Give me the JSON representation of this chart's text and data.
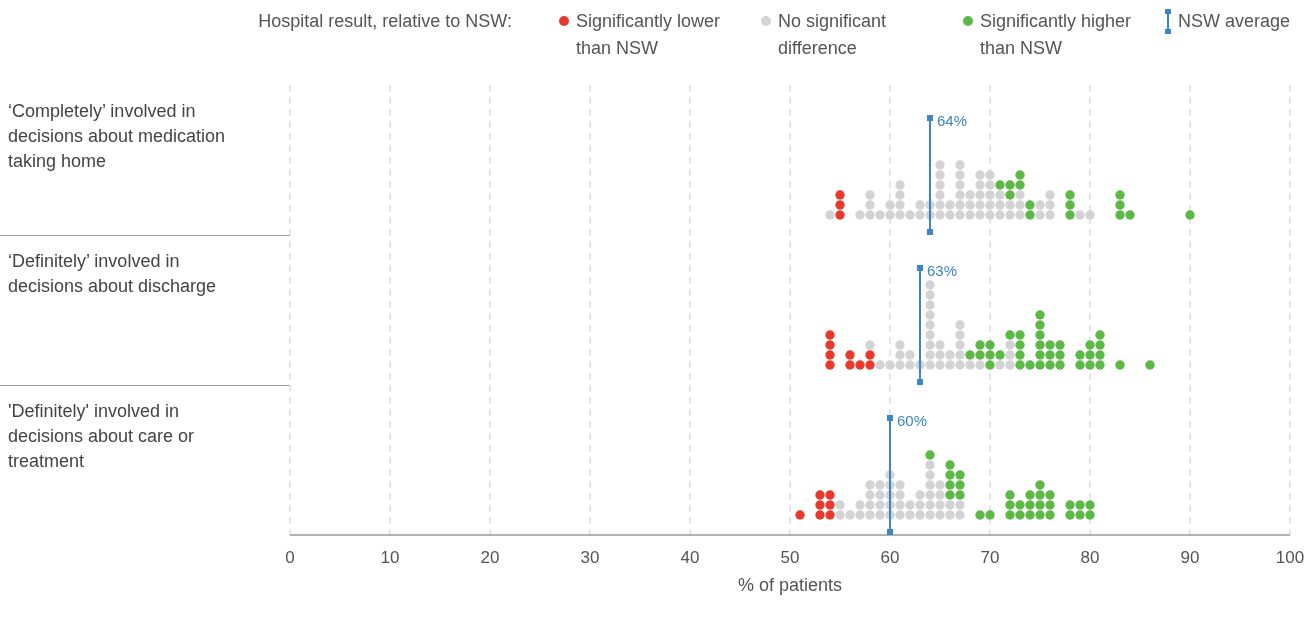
{
  "chart_data": {
    "type": "scatter",
    "orientation": "horizontal",
    "legend_title": "Hospital result, relative to NSW:",
    "legend": "top right",
    "marker": "circle",
    "grid": "x",
    "xlabel": "% of patients",
    "xlim": [
      0,
      100
    ],
    "xticks": [
      0,
      10,
      20,
      30,
      40,
      50,
      60,
      70,
      80,
      90,
      100
    ],
    "categories": [
      "‘Completely’ involved in decisions about medication taking home",
      "‘Definitely’ involved in decisions about discharge",
      "'Definitely' involved in decisions about care or treatment"
    ],
    "series": [
      {
        "name": "Significantly lower than NSW",
        "color": "#e8392c",
        "x": [
          "‘Completely’ involved in decisions about medication taking home",
          "‘Completely’ involved in decisions about medication taking home",
          "‘Completely’ involved in decisions about medication taking home",
          "‘Definitely’ involved in decisions about discharge",
          "‘Definitely’ involved in decisions about discharge",
          "‘Definitely’ involved in decisions about discharge",
          "‘Definitely’ involved in decisions about discharge",
          "‘Definitely’ involved in decisions about discharge",
          "‘Definitely’ involved in decisions about discharge",
          "‘Definitely’ involved in decisions about discharge",
          "‘Definitely’ involved in decisions about discharge",
          "‘Definitely’ involved in decisions about discharge",
          "'Definitely' involved in decisions about care or treatment",
          "'Definitely' involved in decisions about care or treatment",
          "'Definitely' involved in decisions about care or treatment",
          "'Definitely' involved in decisions about care or treatment",
          "'Definitely' involved in decisions about care or treatment",
          "'Definitely' involved in decisions about care or treatment",
          "'Definitely' involved in decisions about care or treatment"
        ],
        "values": [
          55,
          55,
          55,
          54,
          54,
          54,
          54,
          56,
          56,
          57,
          58,
          58,
          51,
          53,
          53,
          53,
          54,
          54,
          54
        ]
      },
      {
        "name": "No significant difference",
        "color": "#d3d3d5",
        "x": [
          "‘Completely’ involved in decisions about medication taking home",
          "‘Completely’ involved in decisions about medication taking home",
          "‘Completely’ involved in decisions about medication taking home",
          "‘Completely’ involved in decisions about medication taking home",
          "‘Completely’ involved in decisions about medication taking home",
          "‘Completely’ involved in decisions about medication taking home",
          "‘Completely’ involved in decisions about medication taking home",
          "‘Completely’ involved in decisions about medication taking home",
          "‘Completely’ involved in decisions about medication taking home",
          "‘Completely’ involved in decisions about medication taking home",
          "‘Completely’ involved in decisions about medication taking home",
          "‘Completely’ involved in decisions about medication taking home",
          "‘Completely’ involved in decisions about medication taking home",
          "‘Completely’ involved in decisions about medication taking home",
          "‘Completely’ involved in decisions about medication taking home",
          "‘Completely’ involved in decisions about medication taking home",
          "‘Completely’ involved in decisions about medication taking home",
          "‘Completely’ involved in decisions about medication taking home",
          "‘Completely’ involved in decisions about medication taking home",
          "‘Completely’ involved in decisions about medication taking home",
          "‘Completely’ involved in decisions about medication taking home",
          "‘Completely’ involved in decisions about medication taking home",
          "‘Completely’ involved in decisions about medication taking home",
          "‘Completely’ involved in decisions about medication taking home",
          "‘Completely’ involved in decisions about medication taking home",
          "‘Completely’ involved in decisions about medication taking home",
          "‘Completely’ involved in decisions about medication taking home",
          "‘Completely’ involved in decisions about medication taking home",
          "‘Completely’ involved in decisions about medication taking home",
          "‘Completely’ involved in decisions about medication taking home",
          "‘Completely’ involved in decisions about medication taking home",
          "‘Completely’ involved in decisions about medication taking home",
          "‘Completely’ involved in decisions about medication taking home",
          "‘Completely’ involved in decisions about medication taking home",
          "‘Completely’ involved in decisions about medication taking home",
          "‘Completely’ involved in decisions about medication taking home",
          "‘Completely’ involved in decisions about medication taking home",
          "‘Completely’ involved in decisions about medication taking home",
          "‘Completely’ involved in decisions about medication taking home",
          "‘Completely’ involved in decisions about medication taking home",
          "‘Completely’ involved in decisions about medication taking home",
          "‘Completely’ involved in decisions about medication taking home",
          "‘Completely’ involved in decisions about medication taking home",
          "‘Completely’ involved in decisions about medication taking home",
          "‘Completely’ involved in decisions about medication taking home",
          "‘Completely’ involved in decisions about medication taking home",
          "‘Completely’ involved in decisions about medication taking home",
          "‘Completely’ involved in decisions about medication taking home",
          "‘Completely’ involved in decisions about medication taking home",
          "‘Completely’ involved in decisions about medication taking home",
          "‘Completely’ involved in decisions about medication taking home",
          "‘Completely’ involved in decisions about medication taking home",
          "‘Completely’ involved in decisions about medication taking home",
          "‘Completely’ involved in decisions about medication taking home",
          "‘Completely’ involved in decisions about medication taking home",
          "‘Completely’ involved in decisions about medication taking home",
          "‘Completely’ involved in decisions about medication taking home",
          "‘Completely’ involved in decisions about medication taking home",
          "‘Completely’ involved in decisions about medication taking home",
          "‘Definitely’ involved in decisions about discharge",
          "‘Definitely’ involved in decisions about discharge",
          "‘Definitely’ involved in decisions about discharge",
          "‘Definitely’ involved in decisions about discharge",
          "‘Definitely’ involved in decisions about discharge",
          "‘Definitely’ involved in decisions about discharge",
          "‘Definitely’ involved in decisions about discharge",
          "‘Definitely’ involved in decisions about discharge",
          "‘Definitely’ involved in decisions about discharge",
          "‘Definitely’ involved in decisions about discharge",
          "‘Definitely’ involved in decisions about discharge",
          "‘Definitely’ involved in decisions about discharge",
          "‘Definitely’ involved in decisions about discharge",
          "‘Definitely’ involved in decisions about discharge",
          "‘Definitely’ involved in decisions about discharge",
          "‘Definitely’ involved in decisions about discharge",
          "‘Definitely’ involved in decisions about discharge",
          "‘Definitely’ involved in decisions about discharge",
          "‘Definitely’ involved in decisions about discharge",
          "‘Definitely’ involved in decisions about discharge",
          "‘Definitely’ involved in decisions about discharge",
          "‘Definitely’ involved in decisions about discharge",
          "‘Definitely’ involved in decisions about discharge",
          "‘Definitely’ involved in decisions about discharge",
          "‘Definitely’ involved in decisions about discharge",
          "‘Definitely’ involved in decisions about discharge",
          "‘Definitely’ involved in decisions about discharge",
          "‘Definitely’ involved in decisions about discharge",
          "‘Definitely’ involved in decisions about discharge",
          "‘Definitely’ involved in decisions about discharge",
          "‘Definitely’ involved in decisions about discharge",
          "‘Definitely’ involved in decisions about discharge",
          "‘Definitely’ involved in decisions about discharge",
          "‘Definitely’ involved in decisions about discharge",
          "'Definitely' involved in decisions about care or treatment",
          "'Definitely' involved in decisions about care or treatment",
          "'Definitely' involved in decisions about care or treatment",
          "'Definitely' involved in decisions about care or treatment",
          "'Definitely' involved in decisions about care or treatment",
          "'Definitely' involved in decisions about care or treatment",
          "'Definitely' involved in decisions about care or treatment",
          "'Definitely' involved in decisions about care or treatment",
          "'Definitely' involved in decisions about care or treatment",
          "'Definitely' involved in decisions about care or treatment",
          "'Definitely' involved in decisions about care or treatment",
          "'Definitely' involved in decisions about care or treatment",
          "'Definitely' involved in decisions about care or treatment",
          "'Definitely' involved in decisions about care or treatment",
          "'Definitely' involved in decisions about care or treatment",
          "'Definitely' involved in decisions about care or treatment",
          "'Definitely' involved in decisions about care or treatment",
          "'Definitely' involved in decisions about care or treatment",
          "'Definitely' involved in decisions about care or treatment",
          "'Definitely' involved in decisions about care or treatment",
          "'Definitely' involved in decisions about care or treatment",
          "'Definitely' involved in decisions about care or treatment",
          "'Definitely' involved in decisions about care or treatment",
          "'Definitely' involved in decisions about care or treatment",
          "'Definitely' involved in decisions about care or treatment",
          "'Definitely' involved in decisions about care or treatment",
          "'Definitely' involved in decisions about care or treatment",
          "'Definitely' involved in decisions about care or treatment",
          "'Definitely' involved in decisions about care or treatment",
          "'Definitely' involved in decisions about care or treatment",
          "'Definitely' involved in decisions about care or treatment",
          "'Definitely' involved in decisions about care or treatment",
          "'Definitely' involved in decisions about care or treatment",
          "'Definitely' involved in decisions about care or treatment",
          "'Definitely' involved in decisions about care or treatment",
          "'Definitely' involved in decisions about care or treatment",
          "'Definitely' involved in decisions about care or treatment",
          "'Definitely' involved in decisions about care or treatment",
          "'Definitely' involved in decisions about care or treatment",
          "'Definitely' involved in decisions about care or treatment",
          "'Definitely' involved in decisions about care or treatment"
        ],
        "values": [
          54,
          57,
          58,
          58,
          58,
          59,
          60,
          60,
          61,
          61,
          61,
          61,
          62,
          63,
          63,
          64,
          64,
          65,
          65,
          65,
          65,
          65,
          65,
          66,
          66,
          67,
          67,
          67,
          67,
          67,
          67,
          68,
          68,
          68,
          69,
          69,
          69,
          69,
          69,
          70,
          70,
          70,
          70,
          70,
          71,
          71,
          71,
          72,
          72,
          73,
          73,
          73,
          75,
          75,
          76,
          76,
          76,
          79,
          80,
          58,
          59,
          60,
          61,
          61,
          61,
          62,
          62,
          63,
          64,
          64,
          64,
          64,
          64,
          64,
          64,
          64,
          64,
          65,
          65,
          65,
          66,
          66,
          67,
          67,
          67,
          67,
          67,
          68,
          69,
          71,
          72,
          72,
          72,
          55,
          55,
          56,
          57,
          57,
          58,
          58,
          58,
          58,
          59,
          59,
          59,
          59,
          60,
          60,
          60,
          60,
          60,
          61,
          61,
          61,
          61,
          62,
          62,
          63,
          63,
          63,
          64,
          64,
          64,
          64,
          64,
          64,
          65,
          65,
          65,
          65,
          66,
          66,
          67,
          67
        ]
      },
      {
        "name": "Significantly higher than NSW",
        "color": "#5cb946",
        "x": [
          "‘Completely’ involved in decisions about medication taking home",
          "‘Completely’ involved in decisions about medication taking home",
          "‘Completely’ involved in decisions about medication taking home",
          "‘Completely’ involved in decisions about medication taking home",
          "‘Completely’ involved in decisions about medication taking home",
          "‘Completely’ involved in decisions about medication taking home",
          "‘Completely’ involved in decisions about medication taking home",
          "‘Completely’ involved in decisions about medication taking home",
          "‘Completely’ involved in decisions about medication taking home",
          "‘Completely’ involved in decisions about medication taking home",
          "‘Completely’ involved in decisions about medication taking home",
          "‘Completely’ involved in decisions about medication taking home",
          "‘Completely’ involved in decisions about medication taking home",
          "‘Completely’ involved in decisions about medication taking home",
          "‘Completely’ involved in decisions about medication taking home",
          "‘Definitely’ involved in decisions about discharge",
          "‘Definitely’ involved in decisions about discharge",
          "‘Definitely’ involved in decisions about discharge",
          "‘Definitely’ involved in decisions about discharge",
          "‘Definitely’ involved in decisions about discharge",
          "‘Definitely’ involved in decisions about discharge",
          "‘Definitely’ involved in decisions about discharge",
          "‘Definitely’ involved in decisions about discharge",
          "‘Definitely’ involved in decisions about discharge",
          "‘Definitely’ involved in decisions about discharge",
          "‘Definitely’ involved in decisions about discharge",
          "‘Definitely’ involved in decisions about discharge",
          "‘Definitely’ involved in decisions about discharge",
          "‘Definitely’ involved in decisions about discharge",
          "‘Definitely’ involved in decisions about discharge",
          "‘Definitely’ involved in decisions about discharge",
          "‘Definitely’ involved in decisions about discharge",
          "‘Definitely’ involved in decisions about discharge",
          "‘Definitely’ involved in decisions about discharge",
          "‘Definitely’ involved in decisions about discharge",
          "‘Definitely’ involved in decisions about discharge",
          "‘Definitely’ involved in decisions about discharge",
          "‘Definitely’ involved in decisions about discharge",
          "‘Definitely’ involved in decisions about discharge",
          "‘Definitely’ involved in decisions about discharge",
          "‘Definitely’ involved in decisions about discharge",
          "‘Definitely’ involved in decisions about discharge",
          "‘Definitely’ involved in decisions about discharge",
          "‘Definitely’ involved in decisions about discharge",
          "‘Definitely’ involved in decisions about discharge",
          "‘Definitely’ involved in decisions about discharge",
          "‘Definitely’ involved in decisions about discharge",
          "‘Definitely’ involved in decisions about discharge",
          "‘Definitely’ involved in decisions about discharge",
          "‘Definitely’ involved in decisions about discharge",
          "‘Definitely’ involved in decisions about discharge",
          "'Definitely' involved in decisions about care or treatment",
          "'Definitely' involved in decisions about care or treatment",
          "'Definitely' involved in decisions about care or treatment",
          "'Definitely' involved in decisions about care or treatment",
          "'Definitely' involved in decisions about care or treatment",
          "'Definitely' involved in decisions about care or treatment",
          "'Definitely' involved in decisions about care or treatment",
          "'Definitely' involved in decisions about care or treatment",
          "'Definitely' involved in decisions about care or treatment",
          "'Definitely' involved in decisions about care or treatment",
          "'Definitely' involved in decisions about care or treatment",
          "'Definitely' involved in decisions about care or treatment",
          "'Definitely' involved in decisions about care or treatment",
          "'Definitely' involved in decisions about care or treatment",
          "'Definitely' involved in decisions about care or treatment",
          "'Definitely' involved in decisions about care or treatment",
          "'Definitely' involved in decisions about care or treatment",
          "'Definitely' involved in decisions about care or treatment",
          "'Definitely' involved in decisions about care or treatment",
          "'Definitely' involved in decisions about care or treatment",
          "'Definitely' involved in decisions about care or treatment",
          "'Definitely' involved in decisions about care or treatment",
          "'Definitely' involved in decisions about care or treatment",
          "'Definitely' involved in decisions about care or treatment",
          "'Definitely' involved in decisions about care or treatment",
          "'Definitely' involved in decisions about care or treatment",
          "'Definitely' involved in decisions about care or treatment",
          "'Definitely' involved in decisions about care or treatment",
          "'Definitely' involved in decisions about care or treatment",
          "'Definitely' involved in decisions about care or treatment",
          "'Definitely' involved in decisions about care or treatment"
        ],
        "values": [
          71,
          72,
          72,
          73,
          73,
          74,
          74,
          78,
          78,
          78,
          83,
          83,
          83,
          84,
          90,
          68,
          69,
          69,
          70,
          70,
          70,
          71,
          72,
          73,
          73,
          73,
          73,
          74,
          75,
          75,
          75,
          75,
          75,
          75,
          76,
          76,
          76,
          77,
          77,
          77,
          79,
          79,
          80,
          80,
          80,
          81,
          81,
          81,
          81,
          83,
          86,
          64,
          66,
          66,
          66,
          66,
          67,
          67,
          67,
          69,
          70,
          72,
          72,
          72,
          73,
          73,
          74,
          74,
          74,
          75,
          75,
          75,
          75,
          76,
          76,
          76,
          78,
          78,
          79,
          79,
          80,
          80
        ]
      },
      {
        "name": "NSW average",
        "color": "#3a86c8",
        "marker": "square",
        "x": [
          "‘Completely’ involved in decisions about medication taking home",
          "‘Definitely’ involved in decisions about discharge",
          "'Definitely' involved in decisions about care or treatment"
        ],
        "values": [
          64,
          63,
          60
        ],
        "value_labels": [
          "64%",
          "63%",
          "60%"
        ]
      }
    ]
  }
}
